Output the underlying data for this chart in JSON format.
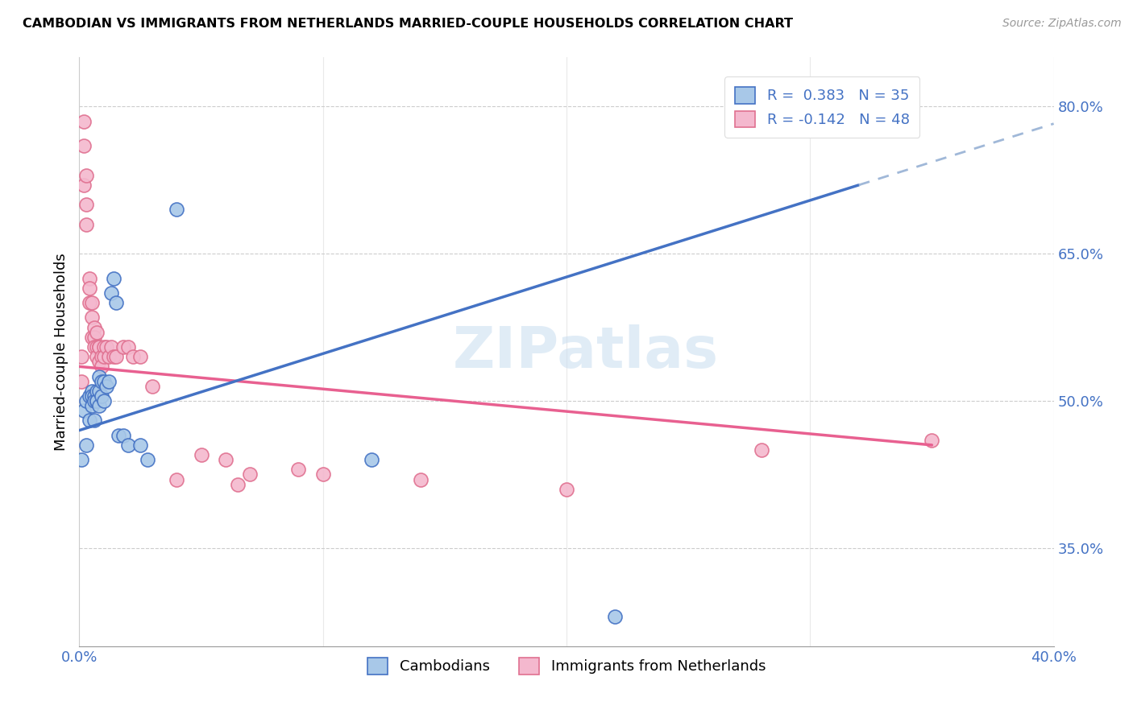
{
  "title": "CAMBODIAN VS IMMIGRANTS FROM NETHERLANDS MARRIED-COUPLE HOUSEHOLDS CORRELATION CHART",
  "source": "Source: ZipAtlas.com",
  "ylabel": "Married-couple Households",
  "xlim": [
    0.0,
    0.4
  ],
  "ylim": [
    0.25,
    0.85
  ],
  "ytick_vals": [
    0.35,
    0.5,
    0.65,
    0.8
  ],
  "ytick_labs": [
    "35.0%",
    "50.0%",
    "65.0%",
    "80.0%"
  ],
  "xtick_vals": [
    0.0,
    0.1,
    0.2,
    0.3,
    0.4
  ],
  "xtick_labs": [
    "0.0%",
    "",
    "",
    "",
    "40.0%"
  ],
  "r_cam": 0.383,
  "n_cam": 35,
  "r_neth": -0.142,
  "n_neth": 48,
  "color_cam_fill": "#a8c8e8",
  "color_cam_edge": "#4472c4",
  "color_neth_fill": "#f4b8ce",
  "color_neth_edge": "#e07090",
  "line_cam": "#4472c4",
  "line_neth": "#e86090",
  "line_ext": "#a0b8d8",
  "watermark": "ZIPatlas",
  "legend_label_cam": "Cambodians",
  "legend_label_neth": "Immigrants from Netherlands",
  "cam_x": [
    0.001,
    0.002,
    0.003,
    0.003,
    0.004,
    0.004,
    0.005,
    0.005,
    0.005,
    0.006,
    0.006,
    0.006,
    0.007,
    0.007,
    0.007,
    0.008,
    0.008,
    0.008,
    0.009,
    0.009,
    0.01,
    0.01,
    0.011,
    0.012,
    0.013,
    0.014,
    0.015,
    0.016,
    0.018,
    0.02,
    0.025,
    0.028,
    0.04,
    0.12,
    0.22
  ],
  "cam_y": [
    0.44,
    0.49,
    0.5,
    0.455,
    0.48,
    0.505,
    0.51,
    0.505,
    0.495,
    0.505,
    0.5,
    0.48,
    0.51,
    0.5,
    0.5,
    0.525,
    0.51,
    0.495,
    0.52,
    0.505,
    0.52,
    0.5,
    0.515,
    0.52,
    0.61,
    0.625,
    0.6,
    0.465,
    0.465,
    0.455,
    0.455,
    0.44,
    0.695,
    0.44,
    0.28
  ],
  "neth_x": [
    0.001,
    0.001,
    0.002,
    0.002,
    0.002,
    0.003,
    0.003,
    0.003,
    0.004,
    0.004,
    0.004,
    0.005,
    0.005,
    0.005,
    0.006,
    0.006,
    0.006,
    0.007,
    0.007,
    0.007,
    0.008,
    0.008,
    0.008,
    0.009,
    0.009,
    0.01,
    0.01,
    0.011,
    0.012,
    0.013,
    0.014,
    0.015,
    0.018,
    0.02,
    0.022,
    0.025,
    0.03,
    0.04,
    0.05,
    0.06,
    0.065,
    0.07,
    0.09,
    0.1,
    0.14,
    0.2,
    0.28,
    0.35
  ],
  "neth_y": [
    0.545,
    0.52,
    0.785,
    0.76,
    0.72,
    0.73,
    0.7,
    0.68,
    0.625,
    0.615,
    0.6,
    0.6,
    0.585,
    0.565,
    0.575,
    0.565,
    0.555,
    0.57,
    0.555,
    0.545,
    0.555,
    0.555,
    0.54,
    0.545,
    0.535,
    0.555,
    0.545,
    0.555,
    0.545,
    0.555,
    0.545,
    0.545,
    0.555,
    0.555,
    0.545,
    0.545,
    0.515,
    0.42,
    0.445,
    0.44,
    0.415,
    0.425,
    0.43,
    0.425,
    0.42,
    0.41,
    0.45,
    0.46
  ]
}
